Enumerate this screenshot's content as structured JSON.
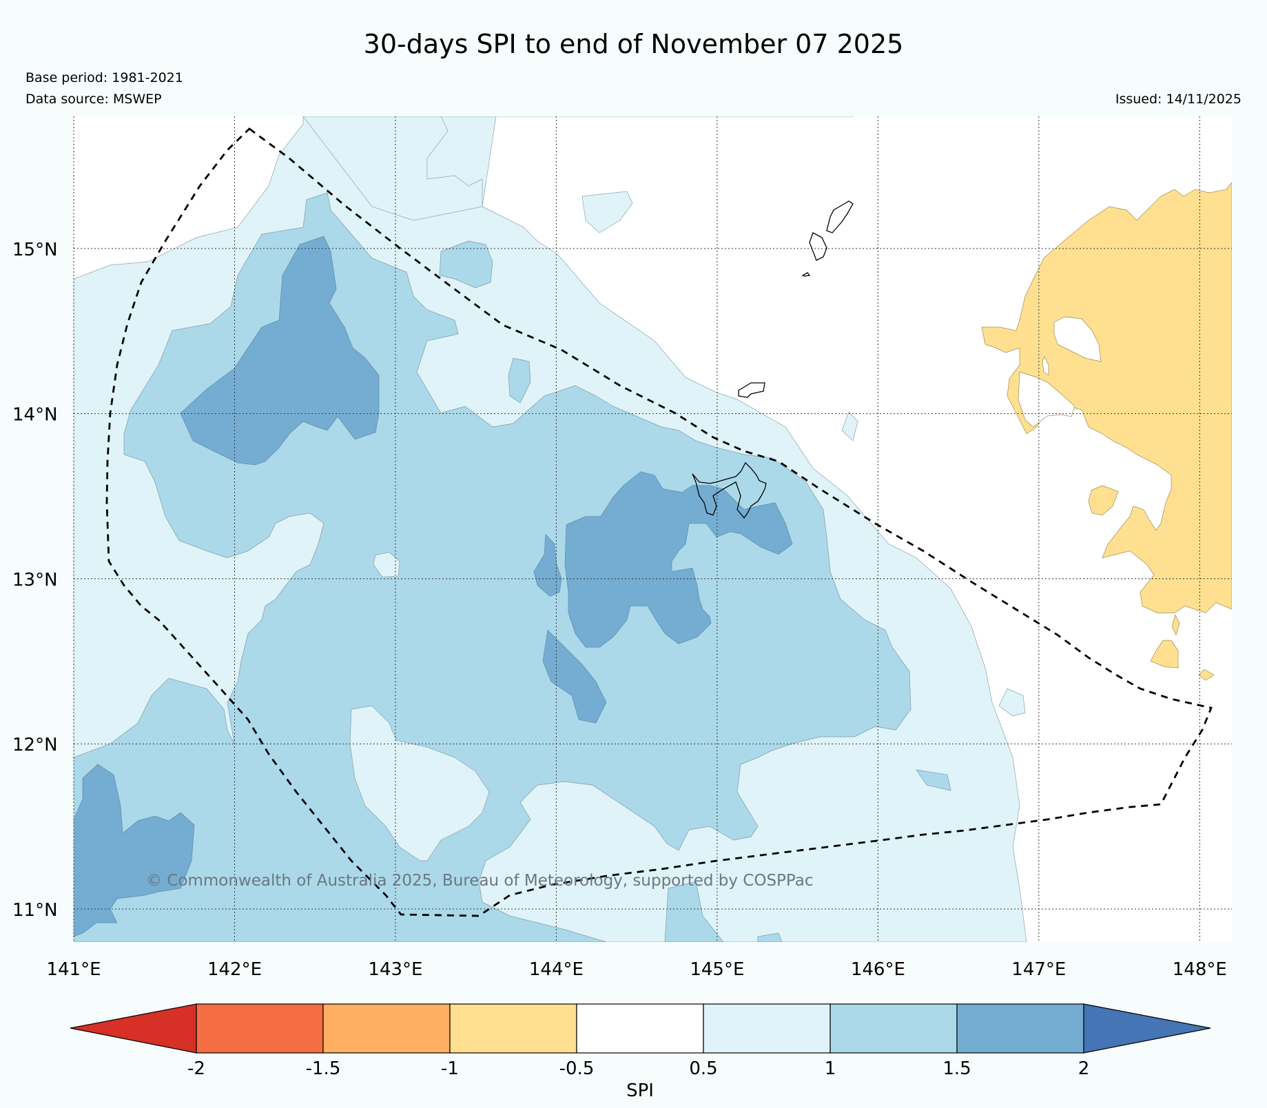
{
  "title": "30-days SPI to end of November 07 2025",
  "base_period": "Base period: 1981-2021",
  "data_source": "Data source: MSWEP",
  "issued": "Issued: 14/11/2025",
  "copyright": "© Commonwealth of Australia 2025, Bureau of Meteorology, supported by COSPPac",
  "map": {
    "lon_labels": [
      "141°E",
      "142°E",
      "143°E",
      "144°E",
      "145°E",
      "146°E",
      "147°E",
      "148°E"
    ],
    "lat_labels": [
      "15°N",
      "14°N",
      "13°N",
      "12°N",
      "11°N"
    ],
    "lon_values": [
      141,
      142,
      143,
      144,
      145,
      146,
      147,
      148
    ],
    "lat_values": [
      15,
      14,
      13,
      12,
      11
    ],
    "extent": {
      "lon_min": 141,
      "lon_max": 148.2,
      "lat_min": 10.8,
      "lat_max": 15.8
    }
  },
  "legend": {
    "label": "SPI",
    "ticks": [
      "-2",
      "-1.5",
      "-1",
      "-0.5",
      "0.5",
      "1",
      "1.5",
      "2"
    ],
    "colors": {
      "extreme_dry": "#d73027",
      "very_dry": "#f46d43",
      "moderately_dry": "#fdae61",
      "slightly_dry": "#fee090",
      "near_normal": "#ffffff",
      "slightly_wet": "#e0f3f8",
      "moderately_wet": "#abd9e9",
      "very_wet": "#74add1",
      "extreme_wet": "#4575b4"
    }
  }
}
